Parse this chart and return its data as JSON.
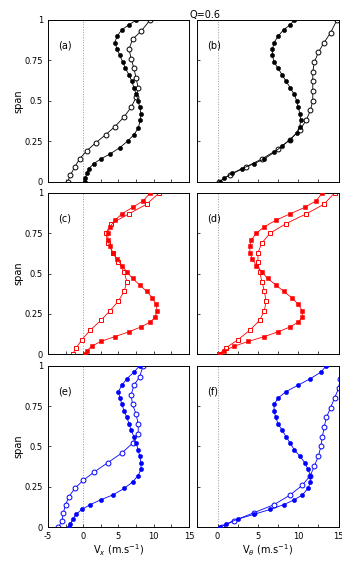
{
  "title": "Q=0.6",
  "panels": [
    "(a)",
    "(b)",
    "(c)",
    "(d)",
    "(e)",
    "(f)"
  ],
  "colors": [
    "black",
    "black",
    "red",
    "red",
    "blue",
    "blue"
  ],
  "marker_filled": [
    "o",
    "o",
    "s",
    "s",
    "o",
    "o"
  ],
  "marker_open": [
    "o",
    "o",
    "s",
    "s",
    "o",
    "o"
  ],
  "span_a_filled": [
    0.0,
    0.02,
    0.05,
    0.08,
    0.11,
    0.14,
    0.17,
    0.21,
    0.25,
    0.29,
    0.33,
    0.38,
    0.42,
    0.46,
    0.5,
    0.54,
    0.58,
    0.62,
    0.66,
    0.7,
    0.74,
    0.78,
    0.82,
    0.86,
    0.9,
    0.94,
    0.97,
    1.0
  ],
  "vx_a_filled": [
    0.2,
    0.3,
    0.5,
    0.8,
    1.5,
    2.5,
    3.8,
    5.2,
    6.3,
    7.2,
    7.8,
    8.1,
    8.2,
    8.0,
    7.8,
    7.5,
    7.2,
    6.9,
    6.5,
    6.0,
    5.6,
    5.2,
    4.8,
    4.5,
    4.8,
    5.5,
    6.5,
    7.5
  ],
  "span_a_open": [
    0.0,
    0.04,
    0.09,
    0.14,
    0.19,
    0.24,
    0.29,
    0.34,
    0.4,
    0.46,
    0.52,
    0.58,
    0.64,
    0.7,
    0.76,
    0.82,
    0.88,
    0.93,
    1.0
  ],
  "vx_a_open": [
    -2.2,
    -1.8,
    -1.2,
    -0.5,
    0.5,
    1.8,
    3.2,
    4.5,
    5.8,
    6.8,
    7.5,
    7.8,
    7.5,
    7.2,
    6.8,
    6.5,
    7.0,
    8.2,
    9.5
  ],
  "span_b_filled": [
    0.0,
    0.02,
    0.05,
    0.08,
    0.11,
    0.14,
    0.18,
    0.22,
    0.26,
    0.3,
    0.34,
    0.38,
    0.42,
    0.46,
    0.5,
    0.54,
    0.58,
    0.62,
    0.66,
    0.7,
    0.74,
    0.78,
    0.82,
    0.86,
    0.9,
    0.94,
    0.97,
    1.0
  ],
  "vx_b_filled": [
    0.3,
    0.8,
    1.8,
    3.0,
    4.5,
    5.8,
    7.0,
    8.0,
    9.0,
    9.8,
    10.2,
    10.3,
    10.2,
    10.0,
    9.8,
    9.5,
    9.0,
    8.5,
    8.0,
    7.5,
    7.0,
    6.8,
    6.8,
    7.0,
    7.5,
    8.2,
    9.0,
    9.5
  ],
  "span_b_open": [
    0.0,
    0.04,
    0.09,
    0.14,
    0.2,
    0.26,
    0.32,
    0.38,
    0.44,
    0.5,
    0.56,
    0.62,
    0.68,
    0.74,
    0.8,
    0.86,
    0.92,
    1.0
  ],
  "vx_b_open": [
    0.2,
    1.5,
    3.5,
    5.5,
    7.5,
    9.0,
    10.2,
    11.0,
    11.5,
    11.8,
    11.8,
    11.8,
    11.8,
    12.0,
    12.5,
    13.2,
    14.0,
    14.8
  ],
  "span_c_filled": [
    0.0,
    0.02,
    0.05,
    0.08,
    0.11,
    0.14,
    0.17,
    0.2,
    0.23,
    0.27,
    0.31,
    0.35,
    0.39,
    0.43,
    0.47,
    0.51,
    0.55,
    0.59,
    0.63,
    0.67,
    0.71,
    0.75,
    0.79,
    0.83,
    0.87,
    0.91,
    0.95,
    1.0
  ],
  "vx_c_filled": [
    0.2,
    0.5,
    1.2,
    2.5,
    4.5,
    6.5,
    8.2,
    9.5,
    10.2,
    10.5,
    10.3,
    9.8,
    9.0,
    8.0,
    7.0,
    6.2,
    5.5,
    4.8,
    4.2,
    3.8,
    3.5,
    3.5,
    3.8,
    4.5,
    5.5,
    7.0,
    8.5,
    9.5
  ],
  "span_c_open": [
    0.0,
    0.04,
    0.09,
    0.15,
    0.21,
    0.27,
    0.33,
    0.39,
    0.45,
    0.51,
    0.57,
    0.63,
    0.69,
    0.75,
    0.81,
    0.87,
    0.93,
    1.0
  ],
  "vx_c_open": [
    -1.5,
    -1.0,
    -0.2,
    1.0,
    2.5,
    3.8,
    5.0,
    5.8,
    6.2,
    5.8,
    5.0,
    4.2,
    3.5,
    3.2,
    4.0,
    6.5,
    9.0,
    10.8
  ],
  "span_d_filled": [
    0.0,
    0.02,
    0.05,
    0.08,
    0.11,
    0.14,
    0.17,
    0.2,
    0.23,
    0.27,
    0.31,
    0.35,
    0.39,
    0.43,
    0.47,
    0.51,
    0.55,
    0.59,
    0.63,
    0.67,
    0.71,
    0.75,
    0.79,
    0.83,
    0.87,
    0.91,
    0.95,
    1.0
  ],
  "vx_d_filled": [
    0.3,
    0.8,
    2.0,
    3.8,
    5.8,
    7.5,
    9.0,
    10.0,
    10.5,
    10.5,
    10.0,
    9.2,
    8.2,
    7.2,
    6.2,
    5.5,
    4.8,
    4.3,
    4.0,
    4.0,
    4.2,
    4.8,
    5.8,
    7.2,
    9.0,
    10.8,
    12.2,
    13.0
  ],
  "span_d_open": [
    0.0,
    0.04,
    0.09,
    0.15,
    0.21,
    0.27,
    0.33,
    0.39,
    0.45,
    0.51,
    0.57,
    0.63,
    0.69,
    0.75,
    0.81,
    0.87,
    0.93,
    1.0
  ],
  "vx_d_open": [
    0.2,
    1.0,
    2.5,
    4.0,
    5.2,
    5.8,
    6.0,
    5.8,
    5.5,
    5.2,
    5.0,
    5.0,
    5.5,
    6.5,
    8.5,
    11.0,
    13.2,
    14.5
  ],
  "span_e_filled": [
    0.0,
    0.02,
    0.05,
    0.08,
    0.11,
    0.14,
    0.17,
    0.2,
    0.24,
    0.28,
    0.32,
    0.36,
    0.4,
    0.44,
    0.48,
    0.52,
    0.56,
    0.6,
    0.64,
    0.68,
    0.72,
    0.76,
    0.8,
    0.84,
    0.88,
    0.92,
    0.96,
    1.0
  ],
  "vx_e_filled": [
    -2.0,
    -1.8,
    -1.5,
    -1.0,
    -0.2,
    1.0,
    2.5,
    4.2,
    5.8,
    7.0,
    7.8,
    8.2,
    8.2,
    8.0,
    7.8,
    7.5,
    7.2,
    6.8,
    6.5,
    6.2,
    5.8,
    5.5,
    5.2,
    5.0,
    5.5,
    6.2,
    7.2,
    8.0
  ],
  "span_e_open": [
    0.0,
    0.04,
    0.09,
    0.14,
    0.19,
    0.24,
    0.29,
    0.34,
    0.4,
    0.46,
    0.52,
    0.58,
    0.64,
    0.7,
    0.76,
    0.82,
    0.88,
    0.93,
    1.0
  ],
  "vx_e_open": [
    -3.5,
    -3.0,
    -2.8,
    -2.5,
    -2.0,
    -1.2,
    0.0,
    1.5,
    3.5,
    5.5,
    7.0,
    7.8,
    7.8,
    7.5,
    7.0,
    6.8,
    7.2,
    8.0,
    8.5
  ],
  "span_f_filled": [
    0.0,
    0.02,
    0.05,
    0.08,
    0.11,
    0.14,
    0.17,
    0.2,
    0.24,
    0.28,
    0.32,
    0.36,
    0.4,
    0.44,
    0.48,
    0.52,
    0.56,
    0.6,
    0.64,
    0.68,
    0.72,
    0.76,
    0.8,
    0.84,
    0.88,
    0.92,
    0.96,
    1.0
  ],
  "vx_f_filled": [
    0.3,
    1.0,
    2.5,
    4.5,
    6.5,
    8.2,
    9.5,
    10.5,
    11.2,
    11.5,
    11.5,
    11.2,
    10.8,
    10.2,
    9.5,
    9.0,
    8.5,
    8.0,
    7.5,
    7.2,
    7.0,
    7.0,
    7.5,
    8.5,
    10.0,
    11.5,
    12.8,
    13.5
  ],
  "span_f_open": [
    0.0,
    0.04,
    0.09,
    0.14,
    0.2,
    0.26,
    0.32,
    0.38,
    0.44,
    0.5,
    0.56,
    0.62,
    0.68,
    0.74,
    0.8,
    0.86,
    0.92,
    1.0
  ],
  "vx_f_open": [
    0.5,
    2.0,
    4.5,
    7.0,
    9.0,
    10.5,
    11.5,
    12.0,
    12.5,
    12.8,
    13.0,
    13.2,
    13.5,
    14.0,
    14.5,
    15.0,
    15.2,
    15.5
  ]
}
